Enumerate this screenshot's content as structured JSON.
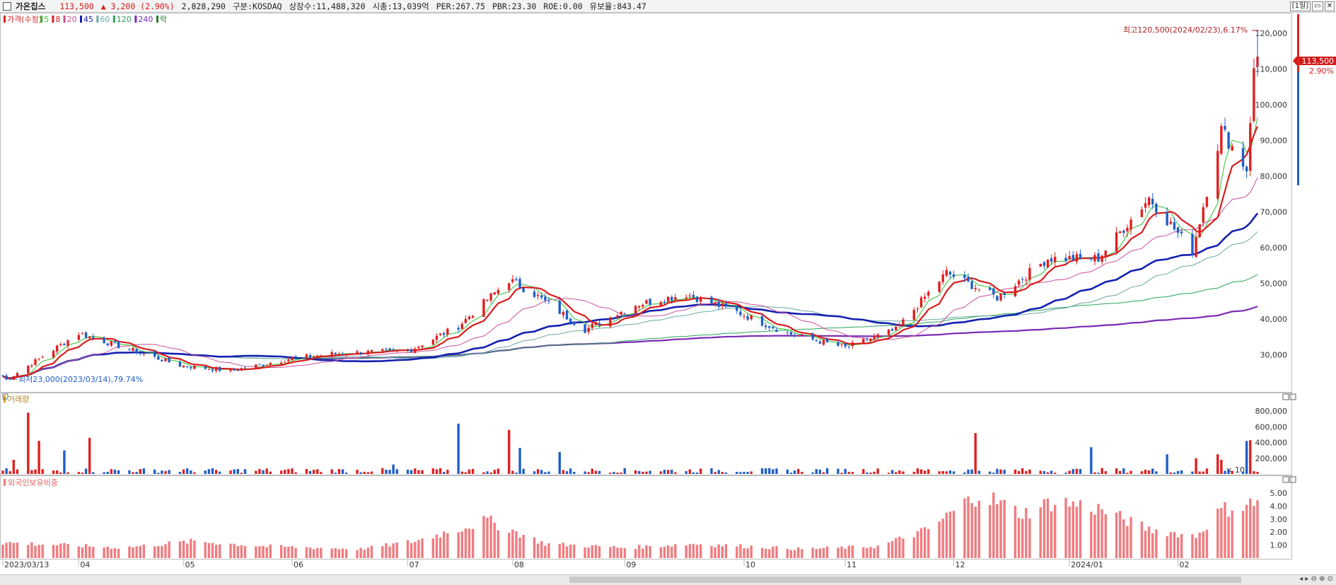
{
  "header": {
    "name": "가온칩스",
    "price": "113,500",
    "change": "▲ 3,200 (2.90%)",
    "volume": "2,828,290",
    "market": "구분:KOSDAQ",
    "shares": "상장수:11,488,320",
    "mktcap": "시총:13,039억",
    "per": "PER:267.75",
    "pbr": "PBR:23.30",
    "roe": "ROE:0.00",
    "reserve": "유보율:843.47",
    "period_button": "[1일]"
  },
  "colors": {
    "up": "#e02020",
    "down": "#1f5fc8",
    "ma5": "#2fbf2f",
    "ma8": "#d81e1e",
    "ma20": "#c8509a",
    "ma45": "#1420b0",
    "ma60": "#6aa7a7",
    "ma120": "#27a35a",
    "ma240": "#7a2bb5",
    "foreign_bar": "#f07c80"
  },
  "price_panel": {
    "legend": [
      {
        "label": "가격(수정)",
        "color": "#e02020"
      },
      {
        "label": "5",
        "color": "#2fbf2f"
      },
      {
        "label": "8",
        "color": "#d81e1e"
      },
      {
        "label": "20",
        "color": "#c8509a"
      },
      {
        "label": "45",
        "color": "#1420b0"
      },
      {
        "label": "60",
        "color": "#6aa7a7"
      },
      {
        "label": "120",
        "color": "#27a35a"
      },
      {
        "label": "240",
        "color": "#7a2bb5"
      },
      {
        "label": "락",
        "color": "#2a7a2a"
      }
    ],
    "high_note": "최고120,500(2024/02/23),6.17%",
    "low_note": "최저23,000(2023/03/14),79.74%",
    "current_tag": "113,500",
    "current_pct": "2.90%",
    "y_ticks": [
      "30,000",
      "40,000",
      "50,000",
      "60,000",
      "70,000",
      "80,000",
      "90,000",
      "100,000",
      "110,000",
      "120,000"
    ]
  },
  "volume_panel": {
    "title": "거래량",
    "y_ticks": [
      "200,000",
      "400,000",
      "600,000",
      "800,000"
    ],
    "unit": "× 10"
  },
  "foreign_panel": {
    "title": "외국인보유비중",
    "y_ticks": [
      "1.00",
      "2.00",
      "3.00",
      "4.00",
      "5.00"
    ]
  },
  "x_axis": {
    "labels": [
      "2023/03/13",
      "04",
      "05",
      "06",
      "07",
      "08",
      "09",
      "10",
      "11",
      "12",
      "2024/01",
      "02"
    ]
  },
  "chart_data": {
    "type": "candlestick",
    "title": "가온칩스",
    "x_range": [
      "2023/03/13",
      "2024/02/23"
    ],
    "price_ylim": [
      20000,
      125000
    ],
    "price_keypoints": [
      {
        "date": "2023/03/13",
        "close": 24000
      },
      {
        "date": "2023/03/14",
        "close": 23000,
        "note": "low"
      },
      {
        "date": "2023/04/03",
        "close": 36000
      },
      {
        "date": "2023/05/01",
        "close": 27000
      },
      {
        "date": "2023/05/15",
        "close": 25500
      },
      {
        "date": "2023/06/01",
        "close": 29000
      },
      {
        "date": "2023/06/15",
        "close": 30500
      },
      {
        "date": "2023/07/03",
        "close": 31000
      },
      {
        "date": "2023/07/17",
        "close": 38000
      },
      {
        "date": "2023/07/31",
        "close": 51000
      },
      {
        "date": "2023/08/07",
        "close": 47000
      },
      {
        "date": "2023/08/21",
        "close": 37000
      },
      {
        "date": "2023/09/04",
        "close": 44000
      },
      {
        "date": "2023/09/18",
        "close": 47000
      },
      {
        "date": "2023/10/02",
        "close": 42000
      },
      {
        "date": "2023/10/16",
        "close": 36000
      },
      {
        "date": "2023/11/01",
        "close": 32000
      },
      {
        "date": "2023/11/15",
        "close": 37000
      },
      {
        "date": "2023/11/29",
        "close": 53000
      },
      {
        "date": "2023/12/13",
        "close": 46000
      },
      {
        "date": "2023/12/27",
        "close": 57000
      },
      {
        "date": "2024/01/10",
        "close": 57000
      },
      {
        "date": "2024/01/24",
        "close": 74000
      },
      {
        "date": "2024/02/05",
        "close": 59000
      },
      {
        "date": "2024/02/13",
        "close": 93000
      },
      {
        "date": "2024/02/20",
        "close": 82000
      },
      {
        "date": "2024/02/22",
        "close": 110300
      },
      {
        "date": "2024/02/23",
        "close": 113500,
        "high": 120500
      }
    ],
    "series": [
      {
        "name": "5",
        "values": []
      },
      {
        "name": "8",
        "values": []
      },
      {
        "name": "20",
        "values": []
      },
      {
        "name": "45",
        "values": [
          24000,
          31000,
          29000,
          30000,
          29500,
          38000,
          44000,
          37000,
          37000,
          40000,
          48000,
          56000,
          66000
        ]
      },
      {
        "name": "60",
        "values": [
          23000,
          28000,
          27500,
          29000,
          30000,
          35000,
          41000,
          38000,
          36000,
          40000,
          46000,
          52000,
          62000
        ]
      },
      {
        "name": "120",
        "values": [
          22000,
          25000,
          26000,
          27500,
          29000,
          32000,
          37000,
          38000,
          38500,
          41000,
          44000,
          46000,
          50000
        ]
      },
      {
        "name": "240",
        "values": [
          21000,
          22500,
          23500,
          24500,
          26000,
          28000,
          29500,
          31000,
          33000,
          35000,
          37000,
          39000,
          41500
        ]
      }
    ],
    "volume_ylim": [
      0,
      900000
    ],
    "foreign_ratio_ylim": [
      0,
      5.6
    ]
  }
}
